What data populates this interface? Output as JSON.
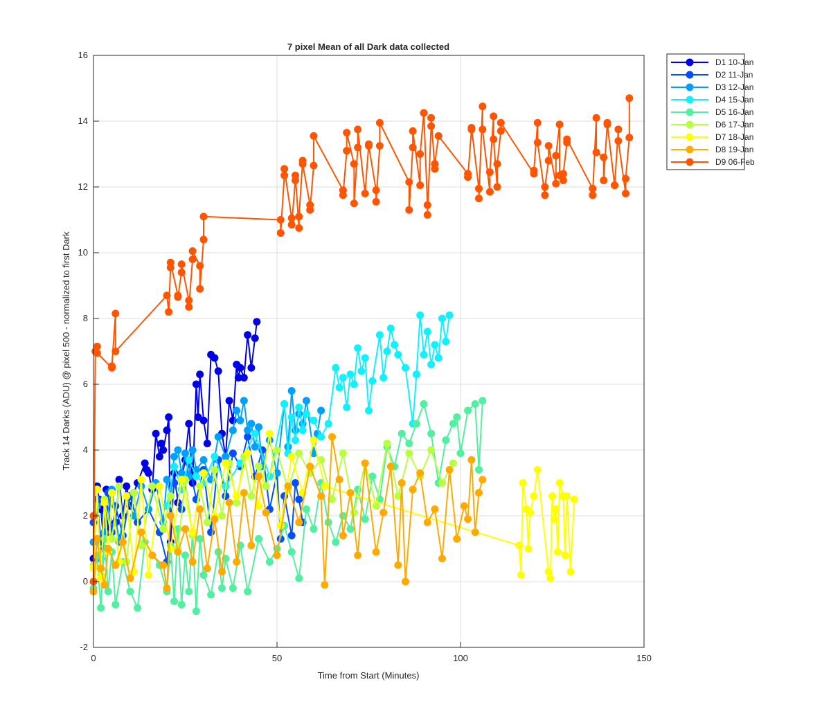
{
  "chart_data": {
    "type": "line",
    "title": "7 pixel Mean of all Dark data collected",
    "xlabel": "Time from Start (Minutes)",
    "ylabel": "Track 14 Darks (ADU) @ pixel 500 - normalized to first Dark",
    "xlim": [
      0,
      150
    ],
    "xticks": [
      0,
      50,
      100,
      150
    ],
    "ylim": [
      -2,
      16
    ],
    "yticks": [
      -2,
      0,
      2,
      4,
      6,
      8,
      10,
      12,
      14,
      16
    ],
    "grid": true,
    "legend": "northeastoutside",
    "series": [
      {
        "name": "D1 10-Jan",
        "color": "#0000e6",
        "x": [
          0,
          1,
          1.5,
          2,
          3,
          3.5,
          4,
          5,
          6,
          7,
          8,
          9,
          10,
          11,
          12,
          14,
          14.5,
          15,
          16,
          17,
          18,
          18.5,
          19,
          20,
          20.5,
          21,
          22,
          23,
          24,
          25,
          26,
          27,
          28,
          28.5,
          29,
          30,
          31,
          32,
          33,
          34,
          35,
          36,
          37,
          38,
          39,
          39.5,
          40,
          41,
          42,
          43,
          44,
          44.5
        ],
        "values": [
          0.7,
          2.9,
          2.5,
          2.2,
          1.0,
          2.8,
          1.5,
          2.7,
          1.8,
          3.1,
          2.0,
          2.9,
          2.3,
          2.7,
          3.0,
          3.6,
          3.4,
          3.3,
          2.8,
          4.5,
          3.8,
          4.2,
          4.0,
          4.6,
          5.0,
          1.2,
          3.3,
          2.4,
          3.1,
          3.7,
          4.8,
          3.0,
          6.0,
          5.0,
          6.3,
          4.9,
          4.2,
          6.9,
          6.8,
          6.4,
          4.5,
          3.8,
          5.5,
          4.9,
          6.6,
          6.2,
          6.5,
          6.2,
          7.5,
          6.5,
          7.4,
          7.9
        ]
      },
      {
        "name": "D2 11-Jan",
        "color": "#0050ff",
        "x": [
          0,
          1,
          2,
          3,
          4,
          5,
          6,
          8,
          10,
          12,
          15,
          18,
          20,
          22,
          24,
          26,
          28,
          30,
          32,
          34,
          36,
          38,
          40,
          42,
          44,
          46,
          48,
          50,
          51,
          52,
          54,
          55,
          56,
          57
        ],
        "values": [
          1.8,
          2.5,
          1.2,
          2.0,
          2.7,
          1.5,
          2.3,
          1.4,
          2.6,
          1.8,
          2.2,
          1.5,
          0.6,
          3.0,
          2.2,
          3.6,
          2.5,
          3.4,
          1.5,
          3.7,
          2.6,
          3.9,
          3.5,
          4.4,
          3.2,
          4.0,
          2.2,
          3.3,
          1.3,
          2.6,
          1.4,
          3.0,
          2.5,
          1.8
        ]
      },
      {
        "name": "D3 12-Jan",
        "color": "#00a0ff",
        "x": [
          0,
          1,
          2,
          3,
          5,
          7,
          9,
          11,
          13,
          15,
          17,
          19,
          20,
          21,
          22,
          23,
          24,
          25,
          26,
          27,
          28,
          30,
          32,
          34,
          36,
          38,
          39,
          40,
          41,
          42,
          43,
          44,
          45,
          46,
          48,
          50,
          52,
          53,
          54,
          55,
          56,
          57,
          58,
          60,
          61,
          62
        ],
        "values": [
          1.2,
          2.3,
          0.7,
          1.5,
          2.8,
          1.2,
          2.6,
          2.0,
          2.9,
          2.2,
          3.0,
          1.8,
          3.1,
          2.6,
          3.8,
          4.0,
          3.3,
          3.9,
          3.2,
          4.0,
          3.4,
          3.7,
          3.1,
          4.4,
          3.8,
          4.6,
          5.2,
          4.9,
          5.5,
          4.6,
          4.8,
          4.1,
          4.7,
          3.5,
          4.3,
          3.3,
          5.4,
          4.1,
          5.8,
          4.6,
          5.1,
          4.8,
          5.5,
          3.9,
          4.5,
          5.2
        ]
      },
      {
        "name": "D4 15-Jan",
        "color": "#10f0ff",
        "x": [
          20,
          22,
          24,
          26,
          28,
          30,
          33,
          36,
          40,
          44,
          48,
          52,
          53,
          54,
          55,
          56,
          57,
          58,
          60,
          62,
          64,
          66,
          67,
          68,
          69,
          70,
          71,
          72,
          73,
          74,
          75,
          76,
          78,
          79,
          80,
          81,
          82,
          83,
          85,
          87,
          88,
          89,
          90,
          91,
          92,
          93,
          94,
          95,
          96,
          97
        ],
        "values": [
          2.3,
          3.5,
          2.8,
          3.7,
          3.2,
          3.0,
          3.8,
          2.9,
          3.6,
          4.5,
          3.2,
          5.4,
          3.9,
          5.0,
          4.3,
          5.3,
          4.6,
          5.1,
          4.9,
          4.4,
          4.8,
          6.5,
          5.9,
          6.2,
          5.3,
          6.3,
          6.0,
          7.1,
          6.4,
          6.8,
          5.2,
          6.1,
          7.5,
          6.2,
          7.0,
          7.7,
          7.2,
          6.9,
          6.5,
          4.8,
          6.3,
          8.1,
          6.9,
          7.6,
          6.6,
          7.2,
          6.8,
          8.0,
          7.3,
          8.1
        ]
      },
      {
        "name": "D5 16-Jan",
        "color": "#50f0a0",
        "x": [
          0,
          1,
          2,
          3,
          4,
          5,
          6,
          8,
          10,
          12,
          14,
          18,
          20,
          21,
          22,
          23,
          24,
          25,
          26,
          27,
          28,
          29,
          30,
          32,
          34,
          35,
          36,
          38,
          40,
          42,
          45,
          48,
          50,
          52,
          54,
          56,
          58,
          60,
          62,
          64,
          66,
          68,
          70,
          72,
          74,
          76,
          78,
          80,
          82,
          84,
          86,
          88,
          90,
          92,
          94,
          96,
          98,
          99,
          100,
          102,
          104,
          105,
          106
        ],
        "values": [
          -0.2,
          0.8,
          -0.8,
          1.3,
          -0.3,
          0.9,
          -0.7,
          0.6,
          -0.3,
          -0.8,
          1.2,
          0.5,
          -0.3,
          1.1,
          -0.6,
          1.6,
          -0.7,
          0.8,
          -0.3,
          1.5,
          -0.9,
          1.3,
          0.2,
          -0.4,
          0.9,
          -0.2,
          0.7,
          -0.2,
          1.1,
          -0.3,
          1.3,
          0.6,
          1.0,
          1.7,
          0.9,
          0.1,
          2.2,
          1.6,
          3.0,
          1.8,
          1.2,
          2.0,
          1.6,
          2.8,
          1.9,
          3.2,
          2.5,
          4.1,
          3.5,
          4.5,
          4.2,
          4.8,
          5.4,
          4.5,
          3.0,
          4.3,
          4.8,
          5.0,
          3.9,
          5.2,
          5.4,
          3.4,
          5.5
        ]
      },
      {
        "name": "D6 17-Jan",
        "color": "#b8ff40",
        "x": [
          0,
          1,
          2,
          3,
          5,
          7,
          9,
          11,
          13,
          16,
          19,
          21,
          23,
          25,
          27,
          29,
          31,
          33,
          35,
          37,
          39,
          41,
          43,
          45,
          47,
          50,
          53,
          56,
          59,
          62,
          65,
          68,
          71,
          74,
          77,
          80,
          83,
          86,
          89,
          92,
          95,
          98
        ],
        "values": [
          0.5,
          2.8,
          0.2,
          2.5,
          1.3,
          2.9,
          0.6,
          2.7,
          1.1,
          2.9,
          1.6,
          2.6,
          1.0,
          3.1,
          1.4,
          2.9,
          1.8,
          3.4,
          2.0,
          3.6,
          2.4,
          3.8,
          2.6,
          3.5,
          2.9,
          4.0,
          2.8,
          3.9,
          3.3,
          3.7,
          2.5,
          3.9,
          2.1,
          3.6,
          2.3,
          4.2,
          2.6,
          3.9,
          3.2,
          4.0,
          3.0,
          3.6
        ]
      },
      {
        "name": "D7 18-Jan",
        "color": "#ffff00",
        "x": [
          0,
          1,
          2,
          3,
          4,
          5,
          7,
          9,
          11,
          13,
          15,
          18,
          21,
          24,
          27,
          30,
          33,
          36,
          39,
          42,
          45,
          48,
          51,
          54,
          57,
          60,
          63,
          116,
          116.5,
          117,
          118,
          118.5,
          119,
          120,
          121,
          124,
          124.5,
          125,
          125.5,
          126,
          126.5,
          127,
          128,
          128.5,
          129,
          130,
          131
        ],
        "values": [
          0.4,
          2.8,
          0.1,
          2.4,
          0.9,
          2.7,
          0.6,
          2.6,
          0.3,
          3.1,
          0.2,
          2.9,
          1.0,
          3.1,
          1.5,
          3.3,
          2.0,
          3.6,
          2.6,
          3.9,
          2.3,
          4.5,
          1.7,
          3.8,
          2.7,
          4.3,
          2.9,
          1.1,
          0.2,
          3.0,
          2.2,
          1.0,
          2.1,
          2.6,
          3.4,
          0.3,
          0.1,
          2.6,
          1.9,
          2.2,
          0.9,
          3.0,
          2.6,
          0.8,
          2.6,
          0.3,
          2.5
        ]
      },
      {
        "name": "D8 19-Jan",
        "color": "#ffaa00",
        "x": [
          0,
          1,
          2,
          3,
          4,
          6,
          8,
          10,
          13,
          16,
          19,
          20,
          21,
          23,
          25,
          27,
          29,
          31,
          33,
          35,
          37,
          39,
          41,
          43,
          45,
          47,
          50,
          53,
          56,
          59,
          62,
          63,
          65,
          67,
          68,
          70,
          72,
          74,
          77,
          79,
          81,
          83,
          84,
          85,
          87,
          89,
          91,
          93,
          95,
          97,
          99,
          101,
          102,
          103,
          104,
          105,
          106
        ],
        "values": [
          -0.3,
          1.3,
          0.4,
          -0.1,
          1.0,
          0.5,
          1.2,
          0.1,
          1.5,
          0.8,
          0.5,
          -0.2,
          2.0,
          0.9,
          1.6,
          0.6,
          2.2,
          0.4,
          1.9,
          0.3,
          2.4,
          0.6,
          2.7,
          1.1,
          3.2,
          2.1,
          0.8,
          2.9,
          1.8,
          3.5,
          2.6,
          -0.1,
          4.4,
          3.1,
          1.4,
          2.7,
          0.8,
          3.6,
          0.9,
          2.1,
          3.5,
          0.5,
          3.0,
          0,
          2.8,
          3.3,
          1.8,
          2.2,
          0.7,
          3.4,
          1.3,
          2.3,
          1.9,
          3.7,
          1.5,
          2.7,
          3.1
        ]
      },
      {
        "name": "D9 06-Feb",
        "color": "#ff5500",
        "x": [
          0,
          0,
          0.5,
          1,
          1,
          5,
          5,
          6,
          6,
          20,
          20.5,
          21,
          21,
          23,
          23,
          24,
          24,
          26,
          26,
          27,
          27,
          29,
          29,
          30,
          30,
          51,
          51,
          52,
          52,
          54,
          54,
          55,
          55,
          56,
          56,
          57,
          57,
          59,
          59,
          60,
          60,
          68,
          68,
          69,
          69,
          71,
          71,
          72,
          72,
          74,
          75,
          75,
          77,
          77,
          78,
          78,
          86,
          86,
          87,
          87,
          89,
          89,
          90,
          91,
          91,
          92,
          92,
          93,
          93,
          94,
          102,
          102,
          103,
          103,
          105,
          105,
          106,
          106,
          108,
          108,
          109,
          109,
          110,
          110,
          111,
          111,
          120,
          120,
          121,
          121,
          123,
          123,
          124,
          124,
          126,
          126,
          127,
          127,
          128,
          128,
          129,
          129,
          136,
          136,
          137,
          137,
          139,
          139,
          140,
          140,
          142,
          142,
          143,
          143,
          145,
          145,
          146,
          146
        ],
        "values": [
          2,
          0,
          7.0,
          7.15,
          6.95,
          6.5,
          6.55,
          8.15,
          7.0,
          8.7,
          8.2,
          9.55,
          9.7,
          8.7,
          8.65,
          9.4,
          9.65,
          8.55,
          8.35,
          9.8,
          10.05,
          9.6,
          8.9,
          10.4,
          11.1,
          11.0,
          10.6,
          12.35,
          12.55,
          11.05,
          10.85,
          12.2,
          12.35,
          10.75,
          11.1,
          12.8,
          12.7,
          11.45,
          11.3,
          12.65,
          13.55,
          11.9,
          11.75,
          13.1,
          13.65,
          12.7,
          11.5,
          13.2,
          13.75,
          11.8,
          13.3,
          13.25,
          11.9,
          11.55,
          13.25,
          13.95,
          12.15,
          11.3,
          13.2,
          13.7,
          12.05,
          13.0,
          14.25,
          11.45,
          11.15,
          13.85,
          14.1,
          12.55,
          12.7,
          13.55,
          12.4,
          12.3,
          13.75,
          13.8,
          11.95,
          11.65,
          14.45,
          13.75,
          11.85,
          12.45,
          14.15,
          13.45,
          12.0,
          12.7,
          13.7,
          13.95,
          12.4,
          12.5,
          13.95,
          13.35,
          11.75,
          12.0,
          12.8,
          13.25,
          12.1,
          12.95,
          13.9,
          12.35,
          12.2,
          12.4,
          13.35,
          13.45,
          11.95,
          11.75,
          14.1,
          13.05,
          12.9,
          12.2,
          13.95,
          13.9,
          12.05,
          12.05,
          13.75,
          13.4,
          11.8,
          12.25,
          13.5,
          14.7
        ]
      }
    ]
  }
}
